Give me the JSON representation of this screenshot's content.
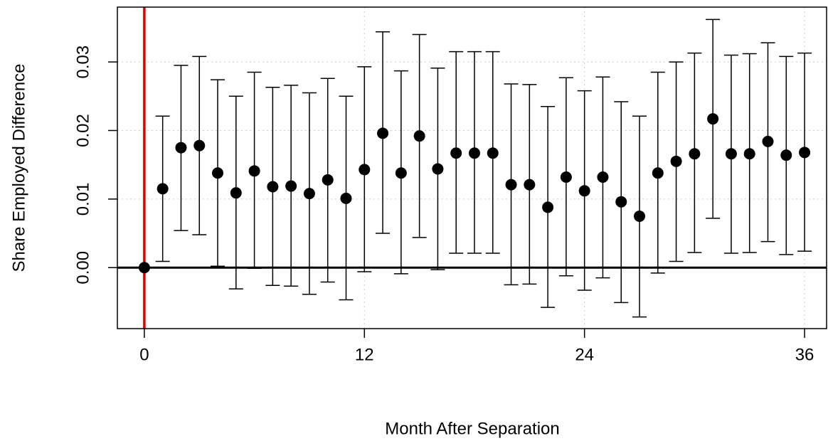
{
  "chart_data": {
    "type": "scatter",
    "xlabel": "Month After Separation",
    "ylabel": "Share Employed Difference",
    "x": [
      0,
      1,
      2,
      3,
      4,
      5,
      6,
      7,
      8,
      9,
      10,
      11,
      12,
      13,
      14,
      15,
      16,
      17,
      18,
      19,
      20,
      21,
      22,
      23,
      24,
      25,
      26,
      27,
      28,
      29,
      30,
      31,
      32,
      33,
      34,
      35,
      36
    ],
    "values": [
      0,
      0.0115,
      0.0175,
      0.0178,
      0.0138,
      0.0109,
      0.0141,
      0.0118,
      0.0119,
      0.0108,
      0.0128,
      0.0101,
      0.0143,
      0.0196,
      0.0138,
      0.0192,
      0.0144,
      0.0167,
      0.0167,
      0.0167,
      0.0121,
      0.0121,
      0.0088,
      0.0132,
      0.0112,
      0.0132,
      0.0096,
      0.0075,
      0.0138,
      0.0155,
      0.0166,
      0.0217,
      0.0166,
      0.0166,
      0.0184,
      0.0164,
      0.0168
    ],
    "lower": [
      null,
      0.0009,
      0.0054,
      0.0048,
      0.0002,
      -0.0031,
      -0.0001,
      -0.0026,
      -0.0027,
      -0.0039,
      -0.0021,
      -0.0047,
      -0.0006,
      0.005,
      -0.0009,
      0.0044,
      -0.0003,
      0.0021,
      0.0021,
      0.0021,
      -0.0025,
      -0.0024,
      -0.0058,
      -0.0012,
      -0.0033,
      -0.0015,
      -0.0051,
      -0.0072,
      -0.0008,
      0.0009,
      0.0022,
      0.0072,
      0.0021,
      0.0022,
      0.0038,
      0.0019,
      0.0024
    ],
    "upper": [
      null,
      0.0221,
      0.0295,
      0.0308,
      0.0274,
      0.025,
      0.0285,
      0.0263,
      0.0266,
      0.0255,
      0.0276,
      0.025,
      0.0293,
      0.0344,
      0.0287,
      0.034,
      0.0291,
      0.0315,
      0.0315,
      0.0315,
      0.0268,
      0.0267,
      0.0235,
      0.0277,
      0.0258,
      0.0278,
      0.0242,
      0.0221,
      0.0285,
      0.03,
      0.0313,
      0.0362,
      0.031,
      0.0312,
      0.0328,
      0.0308,
      0.0313
    ],
    "color": "#000000",
    "xlim": [
      -1.47,
      37.2
    ],
    "ylim": [
      -0.0089,
      0.038
    ],
    "xticks": [
      0,
      12,
      24,
      36
    ],
    "yticks": [
      {
        "value": 0,
        "label": "0.00"
      },
      {
        "value": 0.01,
        "label": "0.01"
      },
      {
        "value": 0.02,
        "label": "0.02"
      },
      {
        "value": 0.03,
        "label": "0.03"
      }
    ],
    "grid": true,
    "vline": 0,
    "vline_color": "#e00000",
    "hline": 0,
    "hline_color": "#000000"
  }
}
